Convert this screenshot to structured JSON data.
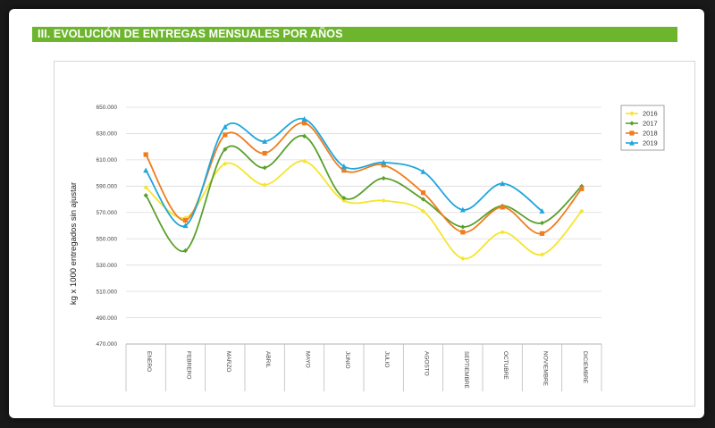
{
  "header": {
    "title": "III. EVOLUCIÓN DE ENTREGAS MENSUALES POR AÑOS"
  },
  "chart_data": {
    "type": "line",
    "title": "",
    "xlabel": "",
    "ylabel": "kg x 1000 entregados sin ajustar",
    "ylim": [
      470000,
      650000
    ],
    "yticks": [
      "470.000",
      "490.000",
      "510.000",
      "530.000",
      "550.000",
      "570.000",
      "590.000",
      "610.000",
      "630.000",
      "650.000"
    ],
    "ytick_values": [
      470000,
      490000,
      510000,
      530000,
      550000,
      570000,
      590000,
      610000,
      630000,
      650000
    ],
    "categories": [
      "ENERO",
      "FEBRERO",
      "MARZO",
      "ABRIL",
      "MAYO",
      "JUNIO",
      "JULIO",
      "AGOSTO",
      "SEPTIEMBRE",
      "OCTUBRE",
      "NOVIEMBRE",
      "DICIEMBRE"
    ],
    "grid": true,
    "smooth": true,
    "legend_position": "top-right",
    "series": [
      {
        "name": "2016",
        "color": "#f5e52b",
        "marker": "diamond",
        "values": [
          589000,
          566000,
          607000,
          591000,
          609000,
          579000,
          579000,
          571000,
          535000,
          555000,
          538000,
          571000
        ]
      },
      {
        "name": "2017",
        "color": "#5aa02c",
        "marker": "diamond",
        "values": [
          583000,
          541000,
          618000,
          604000,
          628000,
          581000,
          596000,
          580000,
          559000,
          575000,
          562000,
          590000
        ]
      },
      {
        "name": "2018",
        "color": "#ef7d1f",
        "marker": "square",
        "values": [
          614000,
          564000,
          629000,
          615000,
          638000,
          602000,
          606000,
          585000,
          555000,
          574000,
          554000,
          588000
        ]
      },
      {
        "name": "2019",
        "color": "#1fa6dc",
        "marker": "triangle",
        "values": [
          602000,
          560000,
          635000,
          624000,
          641000,
          605000,
          608000,
          601000,
          572000,
          592000,
          571000,
          null
        ]
      }
    ]
  }
}
